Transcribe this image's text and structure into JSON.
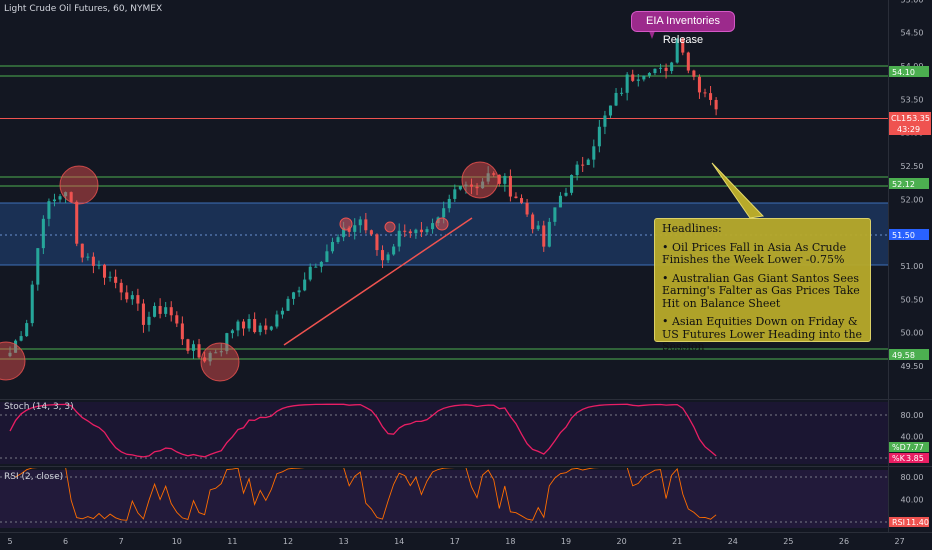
{
  "header": {
    "symbol_title": "Light Crude Oil Futures, 60, NYMEX"
  },
  "annotations": {
    "event_label": "EIA Inventories Release",
    "headlines_title": "Headlines:",
    "headlines": [
      "• Oil Prices Fall in Asia As Crude Finishes the Week Lower -0.75%",
      "• Australian Gas Giant Santos Sees Earning's Falter as Gas Prices Take Hit on Balance Sheet",
      "• Asian Equities Down on Friday & US Futures Lower Heading into the Session"
    ]
  },
  "indicators": {
    "stoch_label": "Stoch (14, 3, 3)",
    "stoch_k_badge": "%D",
    "stoch_k_value": "7.77",
    "stoch_d_badge": "%K",
    "stoch_d_value": "3.85",
    "rsi_label": "RSI (2, close)",
    "rsi_badge": "RSI",
    "rsi_value": "11.40"
  },
  "price_badges": {
    "upper_resistance": "54.10",
    "current_label": "CL1!",
    "current_value": "53.35",
    "countdown": "43:29",
    "mid_resistance": "52.12",
    "zone_mid": "51.50",
    "support": "49.58"
  },
  "colors": {
    "background": "#131722",
    "up_candle": "#26a69a",
    "down_candle": "#ef5350",
    "level_line": "#4caf50",
    "zone_fill": "#1e3a66",
    "stoch_line": "#e91e63",
    "rsi_line": "#ff6d00",
    "headline_box": "#b8aa2a",
    "event_badge": "#9c2a8c"
  },
  "chart_data": [
    {
      "type": "candlestick",
      "title": "Light Crude Oil Futures, 60, NYMEX",
      "x_ticks": [
        "5",
        "6",
        "7",
        "10",
        "11",
        "12",
        "13",
        "14",
        "17",
        "18",
        "19",
        "20",
        "21",
        "24",
        "25",
        "26",
        "27"
      ],
      "y_ticks": [
        "55.00",
        "54.50",
        "54.00",
        "53.50",
        "53.00",
        "52.50",
        "52.00",
        "51.50",
        "51.00",
        "50.50",
        "50.00",
        "49.50"
      ],
      "ylim": [
        49.2,
        55.2
      ],
      "levels": [
        54.1,
        52.12,
        49.58
      ],
      "zone": [
        51.1,
        52.0
      ],
      "trendline": {
        "from": [
          2,
          49.9
        ],
        "to": [
          4.2,
          52.0
        ]
      },
      "anchors": [
        [
          0,
          49.7
        ],
        [
          0.3,
          50.2
        ],
        [
          0.6,
          51.8
        ],
        [
          1.05,
          52.2
        ],
        [
          1.2,
          51.3
        ],
        [
          1.7,
          50.9
        ],
        [
          2.1,
          50.6
        ],
        [
          2.4,
          50.2
        ],
        [
          2.8,
          50.4
        ],
        [
          3.2,
          49.8
        ],
        [
          3.45,
          49.6
        ],
        [
          3.8,
          49.8
        ],
        [
          4.1,
          50.2
        ],
        [
          4.55,
          50.0
        ],
        [
          5.05,
          50.5
        ],
        [
          5.4,
          51.0
        ],
        [
          5.9,
          51.4
        ],
        [
          6.3,
          51.7
        ],
        [
          6.7,
          51.1
        ],
        [
          7.1,
          51.6
        ],
        [
          7.45,
          51.4
        ],
        [
          7.7,
          51.65
        ],
        [
          8.1,
          52.3
        ],
        [
          8.35,
          52.2
        ],
        [
          8.6,
          52.35
        ],
        [
          8.9,
          52.25
        ],
        [
          9.15,
          52.0
        ],
        [
          9.5,
          51.5
        ],
        [
          9.6,
          51.3
        ],
        [
          9.85,
          52.0
        ],
        [
          10.1,
          52.3
        ],
        [
          10.4,
          52.7
        ],
        [
          10.75,
          53.3
        ],
        [
          11.1,
          53.8
        ],
        [
          11.5,
          54.0
        ],
        [
          11.8,
          53.85
        ],
        [
          12.05,
          54.55
        ],
        [
          12.15,
          54.05
        ],
        [
          12.4,
          53.7
        ],
        [
          12.6,
          53.55
        ],
        [
          12.75,
          53.4
        ]
      ],
      "last_close": 53.35
    },
    {
      "type": "line",
      "title": "Stoch (14, 3, 3)",
      "y_ticks": [
        "80.00",
        "40.00",
        "0.00"
      ],
      "ylim": [
        0,
        100
      ],
      "series": [
        {
          "name": "%D",
          "last": 7.77
        },
        {
          "name": "%K",
          "last": 3.85
        }
      ]
    },
    {
      "type": "line",
      "title": "RSI (2, close)",
      "y_ticks": [
        "80.00",
        "40.00",
        "0.00"
      ],
      "ylim": [
        0,
        100
      ],
      "series": [
        {
          "name": "RSI",
          "last": 11.4
        }
      ]
    }
  ]
}
